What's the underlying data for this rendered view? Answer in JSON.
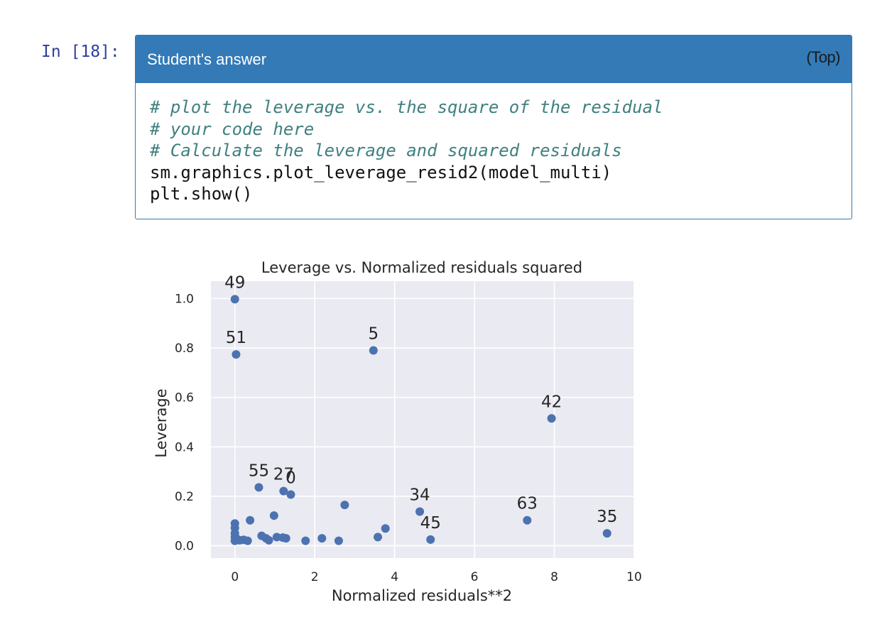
{
  "cell": {
    "prompt": "In [18]:",
    "title": "Student's answer",
    "top_link": "(Top)",
    "code_lines": [
      {
        "text": "# plot the leverage vs. the square of the residual",
        "kind": "comment"
      },
      {
        "text": "# your code here",
        "kind": "comment"
      },
      {
        "text": "# Calculate the leverage and squared residuals",
        "kind": "comment"
      },
      {
        "text": "sm.graphics.plot_leverage_resid2(model_multi)",
        "kind": "code"
      },
      {
        "text": "plt.show()",
        "kind": "code"
      }
    ]
  },
  "colors": {
    "header_bg": "#337ab7",
    "plot_bg": "#eaeaf2",
    "point": "#4c72b0"
  },
  "chart_data": {
    "type": "scatter",
    "title": "Leverage vs. Normalized residuals squared",
    "xlabel": "Normalized residuals**2",
    "ylabel": "Leverage",
    "xlim": [
      -0.6,
      10.0
    ],
    "ylim": [
      -0.05,
      1.07
    ],
    "xticks": [
      0,
      2,
      4,
      6,
      8,
      10
    ],
    "xtick_labels": [
      "0",
      "2",
      "4",
      "6",
      "8",
      "10"
    ],
    "yticks": [
      0.0,
      0.2,
      0.4,
      0.6,
      0.8,
      1.0
    ],
    "ytick_labels": [
      "0.0",
      "0.2",
      "0.4",
      "0.6",
      "0.8",
      "1.0"
    ],
    "grid": true,
    "points": [
      {
        "x": 0.0,
        "y": 0.997,
        "label": "49"
      },
      {
        "x": 0.03,
        "y": 0.774,
        "label": "51"
      },
      {
        "x": 3.47,
        "y": 0.79,
        "label": "5"
      },
      {
        "x": 7.93,
        "y": 0.515,
        "label": "42"
      },
      {
        "x": 0.6,
        "y": 0.236,
        "label": "55"
      },
      {
        "x": 1.22,
        "y": 0.221,
        "label": "27"
      },
      {
        "x": 1.4,
        "y": 0.207,
        "label": "0"
      },
      {
        "x": 4.63,
        "y": 0.138,
        "label": "34"
      },
      {
        "x": 4.9,
        "y": 0.025,
        "label": "45"
      },
      {
        "x": 7.32,
        "y": 0.103,
        "label": "63"
      },
      {
        "x": 9.32,
        "y": 0.05,
        "label": "35"
      },
      {
        "x": 0.0,
        "y": 0.09,
        "label": ""
      },
      {
        "x": 0.0,
        "y": 0.072,
        "label": ""
      },
      {
        "x": 0.0,
        "y": 0.05,
        "label": ""
      },
      {
        "x": 0.0,
        "y": 0.035,
        "label": ""
      },
      {
        "x": 0.0,
        "y": 0.02,
        "label": ""
      },
      {
        "x": 0.05,
        "y": 0.028,
        "label": ""
      },
      {
        "x": 0.12,
        "y": 0.022,
        "label": ""
      },
      {
        "x": 0.22,
        "y": 0.024,
        "label": ""
      },
      {
        "x": 0.32,
        "y": 0.02,
        "label": ""
      },
      {
        "x": 0.38,
        "y": 0.103,
        "label": ""
      },
      {
        "x": 0.67,
        "y": 0.04,
        "label": ""
      },
      {
        "x": 0.78,
        "y": 0.03,
        "label": ""
      },
      {
        "x": 0.85,
        "y": 0.022,
        "label": ""
      },
      {
        "x": 0.98,
        "y": 0.122,
        "label": ""
      },
      {
        "x": 1.05,
        "y": 0.035,
        "label": ""
      },
      {
        "x": 1.2,
        "y": 0.033,
        "label": ""
      },
      {
        "x": 1.28,
        "y": 0.03,
        "label": ""
      },
      {
        "x": 1.77,
        "y": 0.02,
        "label": ""
      },
      {
        "x": 2.18,
        "y": 0.03,
        "label": ""
      },
      {
        "x": 2.6,
        "y": 0.02,
        "label": ""
      },
      {
        "x": 2.75,
        "y": 0.165,
        "label": ""
      },
      {
        "x": 3.58,
        "y": 0.035,
        "label": ""
      },
      {
        "x": 3.77,
        "y": 0.07,
        "label": ""
      }
    ]
  }
}
